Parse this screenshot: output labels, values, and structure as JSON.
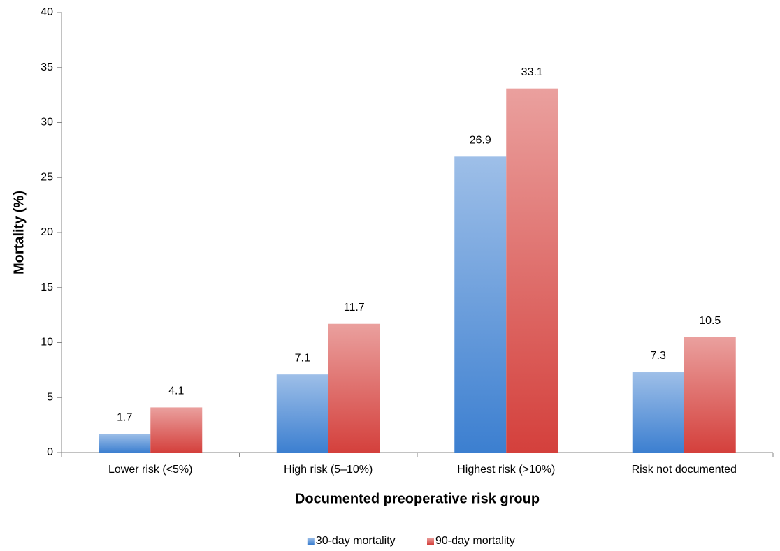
{
  "chart_data": {
    "type": "bar",
    "x_label": "Documented preoperative risk group",
    "y_label": "Mortality (%)",
    "categories": [
      "Lower risk (<5%)",
      "High risk (5–10%)",
      "Highest risk (>10%)",
      "Risk not documented"
    ],
    "series": [
      {
        "name": "30-day mortality",
        "color": "#3c7fd0",
        "values": [
          1.7,
          7.1,
          26.9,
          7.3
        ]
      },
      {
        "name": "90-day mortality",
        "color": "#d4403c",
        "values": [
          4.1,
          11.7,
          33.1,
          10.5
        ]
      }
    ],
    "ylim": [
      0,
      40
    ],
    "yticks": [
      0,
      5,
      10,
      15,
      20,
      25,
      30,
      35,
      40
    ],
    "grid": false,
    "legend": "bottom"
  }
}
